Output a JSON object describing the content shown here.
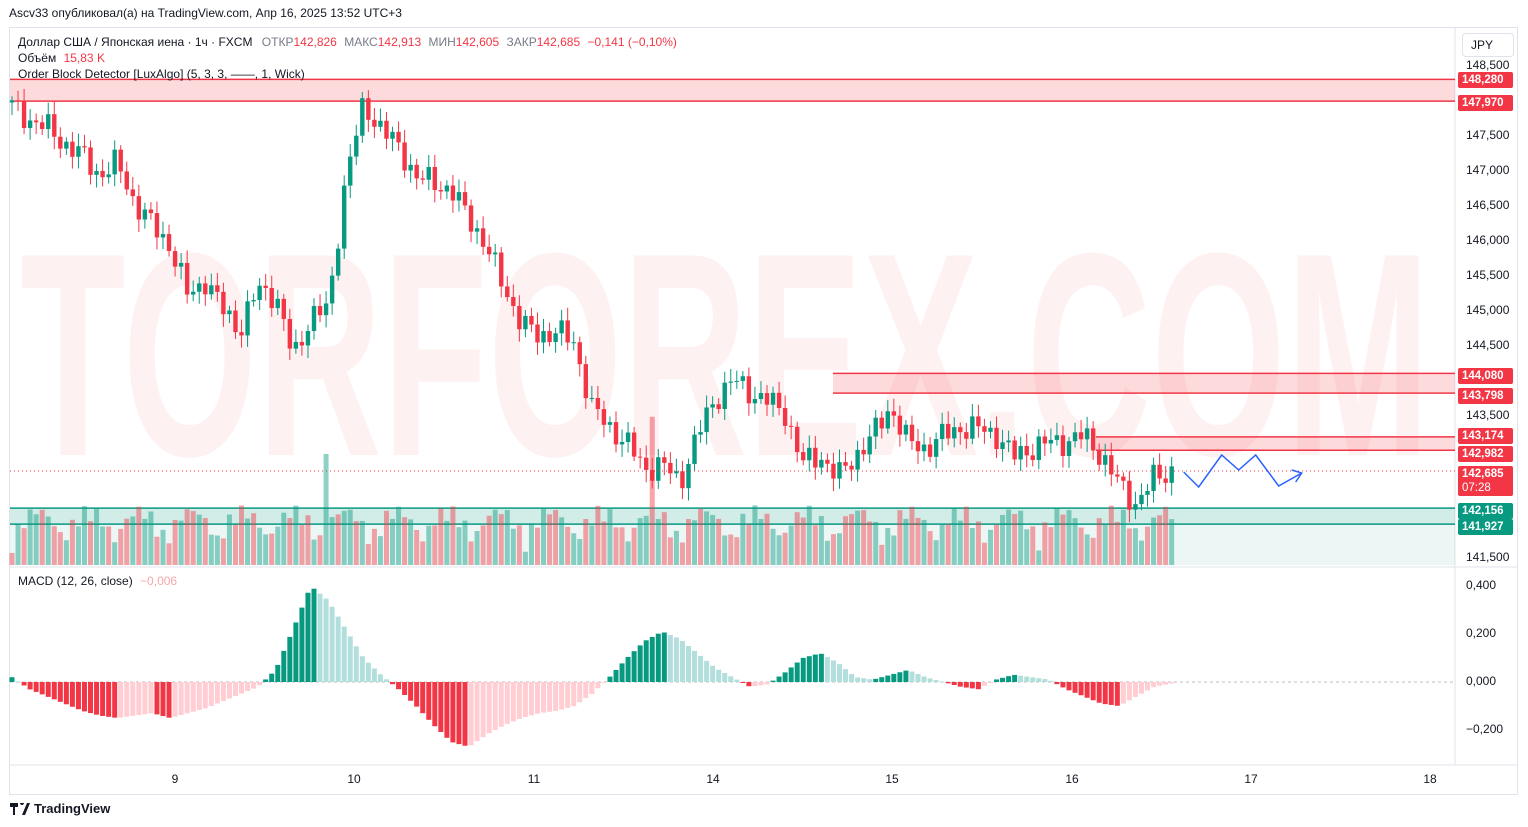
{
  "header": {
    "text": "Ascv33 опубликовал(а) на TradingView.com, Апр 16, 2025 13:52 UTC+3"
  },
  "legend": {
    "symbol_line": "Доллар США / Японская иена · 1ч · FXCM",
    "open_label": "ОТКР",
    "open": "142,826",
    "high_label": "МАКС",
    "high": "142,913",
    "low_label": "МИН",
    "low": "142,605",
    "close_label": "ЗАКР",
    "close": "142,685",
    "change": "−0,141 (−0,10%)",
    "volume_label": "Объём",
    "volume_value": "15,83 K",
    "indicator": "Order Block Detector [LuxAlgo] (5, 3, 3, ——, 1, Wick)",
    "macd_label": "MACD (12, 26, close)",
    "macd_value": "−0,006"
  },
  "currency_button": "JPY",
  "watermark": "TORFOREX.COM",
  "price_axis": {
    "ticks": [
      "148,500",
      "147,500",
      "147,000",
      "146,500",
      "146,000",
      "145,500",
      "145,000",
      "144,500",
      "143,500",
      "141,500"
    ]
  },
  "price_tags": {
    "ob1_top": "148,280",
    "ob1_bot": "147,970",
    "ob2_top": "144,080",
    "ob2_bot": "143,798",
    "ob3_top": "143,174",
    "ob3_bot": "142,982",
    "current": "142,685",
    "countdown": "07:28",
    "ob4_top": "142,156",
    "ob4_bot": "141,927"
  },
  "macd_axis": {
    "ticks": [
      "0,400",
      "0,200",
      "0,000",
      "−0,200"
    ]
  },
  "time_axis": {
    "labels": [
      "9",
      "10",
      "11",
      "14",
      "15",
      "16",
      "17",
      "18"
    ]
  },
  "footer": {
    "brand": "TradingView"
  },
  "colors": {
    "up": "#089981",
    "down": "#f23645",
    "ob_bear": "#f23645",
    "ob_bull": "#089981",
    "forecast": "#2962ff"
  },
  "chart_data": {
    "type": "candlestick",
    "symbol": "USDJPY",
    "timeframe": "1h",
    "ylim": [
      141.4,
      148.6
    ],
    "x_labels": [
      "9",
      "10",
      "11",
      "14",
      "15",
      "16",
      "17",
      "18"
    ],
    "order_blocks": [
      {
        "type": "bearish",
        "top": 148.28,
        "bottom": 147.97
      },
      {
        "type": "bearish",
        "top": 144.08,
        "bottom": 143.798
      },
      {
        "type": "bearish",
        "top": 143.174,
        "bottom": 142.982
      },
      {
        "type": "bullish",
        "top": 142.156,
        "bottom": 141.927
      }
    ],
    "close_path": [
      147.9,
      147.7,
      147.6,
      147.35,
      147.2,
      146.9,
      147.1,
      146.5,
      146.2,
      145.9,
      145.2,
      145.4,
      145.0,
      144.7,
      145.3,
      145.2,
      144.3,
      144.9,
      145.0,
      146.9,
      147.9,
      147.6,
      147.3,
      146.9,
      146.8,
      146.7,
      146.3,
      145.9,
      145.3,
      144.8,
      144.6,
      144.7,
      144.5,
      143.6,
      143.3,
      143.1,
      142.7,
      142.8,
      142.5,
      143.2,
      143.7,
      144.0,
      143.8,
      143.7,
      143.5,
      142.8,
      142.9,
      142.6,
      142.9,
      143.2,
      143.6,
      143.1,
      143.0,
      143.2,
      143.3,
      143.3,
      143.2,
      142.9,
      143.0,
      143.1,
      143.1,
      143.2,
      142.9,
      142.5,
      142.2,
      142.6,
      142.685
    ],
    "macd_histogram": [
      0.02,
      -0.03,
      -0.06,
      -0.09,
      -0.12,
      -0.14,
      -0.15,
      -0.14,
      -0.13,
      -0.15,
      -0.13,
      -0.11,
      -0.08,
      -0.05,
      -0.02,
      0.05,
      0.22,
      0.4,
      0.34,
      0.22,
      0.1,
      0.03,
      -0.03,
      -0.1,
      -0.18,
      -0.25,
      -0.27,
      -0.22,
      -0.18,
      -0.15,
      -0.13,
      -0.12,
      -0.1,
      -0.05,
      0.02,
      0.1,
      0.17,
      0.21,
      0.18,
      0.12,
      0.06,
      0.02,
      -0.02,
      -0.01,
      0.04,
      0.1,
      0.12,
      0.08,
      0.02,
      0.01,
      0.03,
      0.05,
      0.02,
      0.0,
      -0.02,
      -0.03,
      0.01,
      0.03,
      0.02,
      0.01,
      -0.03,
      -0.06,
      -0.09,
      -0.1,
      -0.06,
      -0.02,
      -0.006
    ]
  }
}
